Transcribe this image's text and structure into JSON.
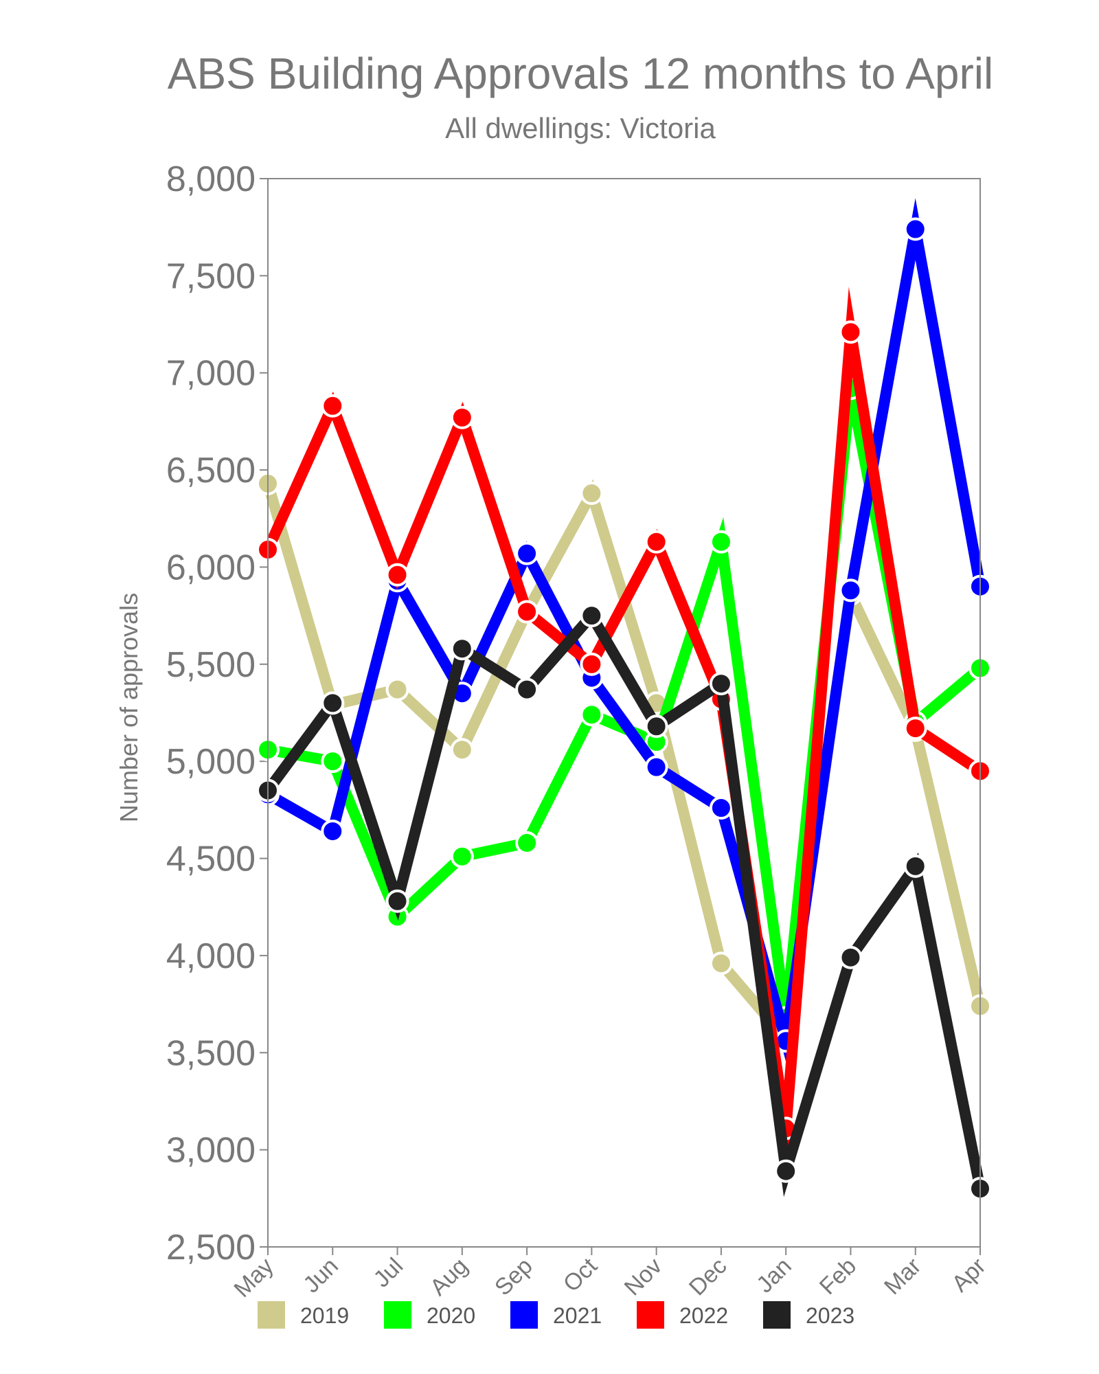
{
  "chart_data": {
    "type": "line",
    "title": "ABS Building Approvals 12 months to April",
    "subtitle": "All dwellings: Victoria",
    "xlabel": "",
    "ylabel": "Number of approvals",
    "ylim": [
      2500,
      8000
    ],
    "yticks": [
      "8,000",
      "7,500",
      "7,000",
      "6,500",
      "6,000",
      "5,500",
      "5,000",
      "4,500",
      "4,000",
      "3,500",
      "3,000",
      "2,500"
    ],
    "categories": [
      "May",
      "Jun",
      "Jul",
      "Aug",
      "Sep",
      "Oct",
      "Nov",
      "Dec",
      "Jan",
      "Feb",
      "Mar",
      "Apr"
    ],
    "grid": false,
    "legend_position": "bottom",
    "series": [
      {
        "name": "2019",
        "color": "#cfcb8c",
        "values": [
          6430,
          5290,
          5370,
          5060,
          5770,
          6380,
          5300,
          3960,
          3570,
          5860,
          5160,
          3740
        ]
      },
      {
        "name": "2020",
        "color": "#00ff00",
        "values": [
          5060,
          5000,
          4200,
          4510,
          4580,
          5240,
          5100,
          6130,
          3680,
          6920,
          5200,
          5480
        ]
      },
      {
        "name": "2021",
        "color": "#0000ff",
        "values": [
          4830,
          4640,
          5930,
          5350,
          6070,
          5430,
          4970,
          4760,
          3560,
          5880,
          7740,
          5900
        ]
      },
      {
        "name": "2022",
        "color": "#ff0000",
        "values": [
          6090,
          6830,
          5960,
          6770,
          5770,
          5500,
          6130,
          5320,
          3110,
          7210,
          5170,
          4950
        ]
      },
      {
        "name": "2023",
        "color": "#222222",
        "values": [
          4850,
          5300,
          4280,
          5580,
          5370,
          5750,
          5180,
          5400,
          2890,
          3990,
          4460,
          2800
        ]
      }
    ]
  }
}
